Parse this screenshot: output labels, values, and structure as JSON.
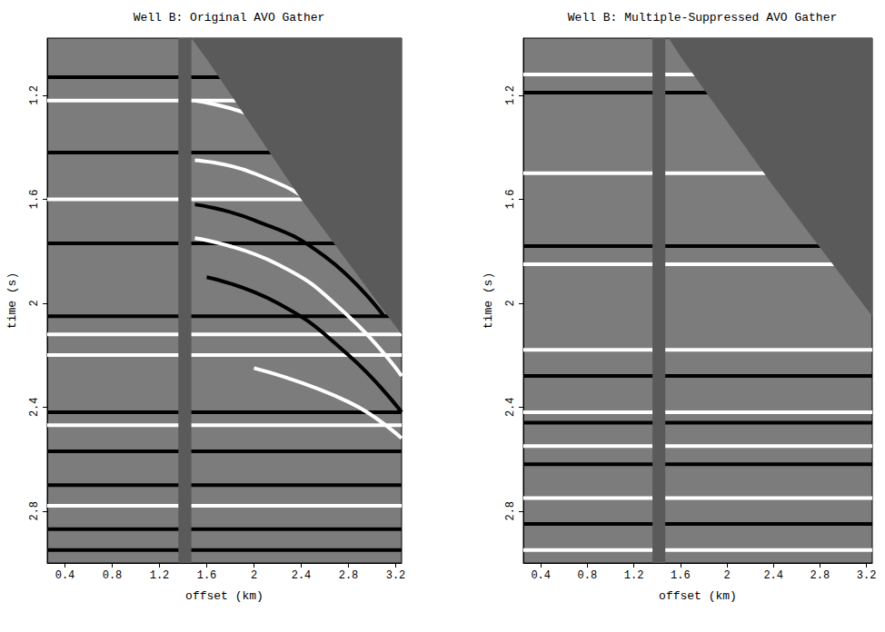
{
  "chart_data": [
    {
      "type": "line",
      "title": "Well B: Original AVO Gather",
      "x_label": "offset (km)",
      "y_label": "time (s)",
      "xlim": [
        0.25,
        3.25
      ],
      "xticks": [
        0.4,
        0.8,
        1.2,
        1.6,
        2,
        2.4,
        2.8,
        3.2
      ],
      "ylim": [
        0.98,
        3.0
      ],
      "yticks": [
        1.2,
        1.6,
        2,
        2.4,
        2.8
      ],
      "grid": false,
      "gap": [
        1.36,
        1.47
      ],
      "mute": {
        "color": "#5a5a5a",
        "x": [
          1.47,
          3.25,
          3.25,
          2.4,
          1.6
        ],
        "y": [
          0.98,
          0.98,
          2.12,
          1.6,
          1.06
        ]
      },
      "series": [
        {
          "color": "#000000",
          "x": [
            0.25,
            3.25
          ],
          "values": [
            1.13,
            1.13
          ]
        },
        {
          "color": "#ffffff",
          "x": [
            0.25,
            3.25
          ],
          "values": [
            1.22,
            1.22
          ]
        },
        {
          "color": "#000000",
          "x": [
            0.25,
            3.25
          ],
          "values": [
            1.42,
            1.42
          ]
        },
        {
          "color": "#ffffff",
          "x": [
            0.25,
            3.25
          ],
          "values": [
            1.6,
            1.6
          ]
        },
        {
          "color": "#000000",
          "x": [
            0.25,
            3.25
          ],
          "values": [
            1.77,
            1.77
          ]
        },
        {
          "color": "#000000",
          "x": [
            0.25,
            3.25
          ],
          "values": [
            2.05,
            2.05
          ]
        },
        {
          "color": "#ffffff",
          "x": [
            0.25,
            3.25
          ],
          "values": [
            2.12,
            2.12
          ]
        },
        {
          "color": "#ffffff",
          "x": [
            0.25,
            3.25
          ],
          "values": [
            2.2,
            2.2
          ]
        },
        {
          "color": "#000000",
          "x": [
            0.25,
            3.25
          ],
          "values": [
            2.42,
            2.42
          ]
        },
        {
          "color": "#ffffff",
          "x": [
            0.25,
            3.25
          ],
          "values": [
            2.47,
            2.47
          ]
        },
        {
          "color": "#000000",
          "x": [
            0.25,
            3.25
          ],
          "values": [
            2.57,
            2.57
          ]
        },
        {
          "color": "#000000",
          "x": [
            0.25,
            3.25
          ],
          "values": [
            2.7,
            2.7
          ]
        },
        {
          "color": "#ffffff",
          "x": [
            0.25,
            3.25
          ],
          "values": [
            2.78,
            2.78
          ]
        },
        {
          "color": "#000000",
          "x": [
            0.25,
            3.25
          ],
          "values": [
            2.87,
            2.87
          ]
        },
        {
          "color": "#000000",
          "x": [
            0.25,
            3.25
          ],
          "values": [
            2.95,
            2.95
          ]
        },
        {
          "color": "#ffffff",
          "x": [
            1.5,
            2.0,
            2.4
          ],
          "values": [
            1.22,
            1.28,
            1.38
          ]
        },
        {
          "color": "#ffffff",
          "x": [
            1.5,
            2.0,
            2.6,
            2.9
          ],
          "values": [
            1.45,
            1.5,
            1.65,
            1.8
          ]
        },
        {
          "color": "#000000",
          "x": [
            1.5,
            2.0,
            2.6,
            3.1
          ],
          "values": [
            1.62,
            1.68,
            1.82,
            2.05
          ]
        },
        {
          "color": "#ffffff",
          "x": [
            1.5,
            2.2,
            2.8,
            3.25
          ],
          "values": [
            1.75,
            1.85,
            2.05,
            2.28
          ]
        },
        {
          "color": "#000000",
          "x": [
            1.6,
            2.2,
            2.8,
            3.25
          ],
          "values": [
            1.9,
            2.0,
            2.2,
            2.42
          ]
        },
        {
          "color": "#ffffff",
          "x": [
            2.0,
            2.8,
            3.25
          ],
          "values": [
            2.25,
            2.38,
            2.52
          ]
        }
      ]
    },
    {
      "type": "line",
      "title": "Well B: Multiple-Suppressed AVO Gather",
      "x_label": "offset (km)",
      "y_label": "time (s)",
      "xlim": [
        0.25,
        3.25
      ],
      "xticks": [
        0.4,
        0.8,
        1.2,
        1.6,
        2,
        2.4,
        2.8,
        3.2
      ],
      "ylim": [
        0.98,
        3.0
      ],
      "yticks": [
        1.2,
        1.6,
        2,
        2.4,
        2.8
      ],
      "grid": false,
      "gap": [
        1.36,
        1.47
      ],
      "mute": {
        "color": "#5a5a5a",
        "x": [
          1.5,
          3.25,
          3.25,
          2.4,
          1.6
        ],
        "y": [
          0.98,
          0.98,
          2.05,
          1.55,
          1.05
        ]
      },
      "series": [
        {
          "color": "#ffffff",
          "x": [
            0.25,
            3.25
          ],
          "values": [
            1.12,
            1.12
          ]
        },
        {
          "color": "#000000",
          "x": [
            0.25,
            3.25
          ],
          "values": [
            1.19,
            1.19
          ]
        },
        {
          "color": "#ffffff",
          "x": [
            0.25,
            3.25
          ],
          "values": [
            1.5,
            1.5
          ]
        },
        {
          "color": "#000000",
          "x": [
            0.25,
            3.25
          ],
          "values": [
            1.78,
            1.78
          ]
        },
        {
          "color": "#ffffff",
          "x": [
            0.25,
            3.25
          ],
          "values": [
            1.85,
            1.85
          ]
        },
        {
          "color": "#ffffff",
          "x": [
            0.25,
            3.25
          ],
          "values": [
            2.18,
            2.18
          ]
        },
        {
          "color": "#000000",
          "x": [
            0.25,
            3.25
          ],
          "values": [
            2.28,
            2.28
          ]
        },
        {
          "color": "#ffffff",
          "x": [
            0.25,
            3.25
          ],
          "values": [
            2.42,
            2.42
          ]
        },
        {
          "color": "#000000",
          "x": [
            0.25,
            3.25
          ],
          "values": [
            2.46,
            2.46
          ]
        },
        {
          "color": "#ffffff",
          "x": [
            0.25,
            3.25
          ],
          "values": [
            2.55,
            2.55
          ]
        },
        {
          "color": "#000000",
          "x": [
            0.25,
            3.25
          ],
          "values": [
            2.62,
            2.62
          ]
        },
        {
          "color": "#ffffff",
          "x": [
            0.25,
            3.25
          ],
          "values": [
            2.75,
            2.75
          ]
        },
        {
          "color": "#000000",
          "x": [
            0.25,
            3.25
          ],
          "values": [
            2.85,
            2.85
          ]
        },
        {
          "color": "#ffffff",
          "x": [
            0.25,
            3.25
          ],
          "values": [
            2.95,
            2.95
          ]
        }
      ]
    }
  ]
}
